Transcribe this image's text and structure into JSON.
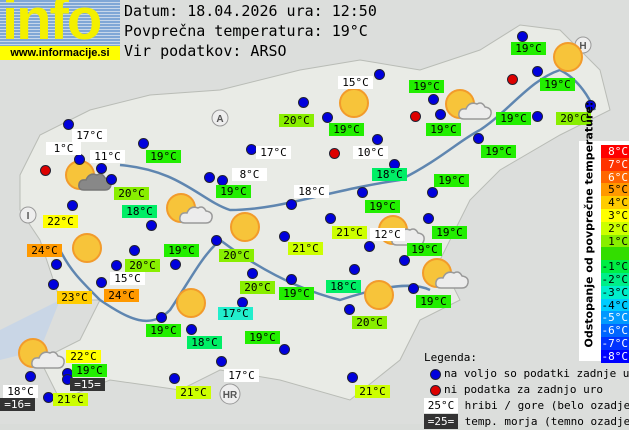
{
  "logo": {
    "text": "info",
    "url": "www.informacije.si"
  },
  "header": {
    "date_line": "Datum: 18.04.2026 ura: 12:50",
    "avg_line": "Povprečna temperatura: 19°C",
    "source_line": "Vir podatkov: ARSO"
  },
  "colors": {
    "station_ok": "#0000dd",
    "station_missing": "#dd0000",
    "mountain_bg": "#ffffff",
    "sea_bg": "#333333"
  },
  "scale": {
    "title": "Odstopanje od povprečne temperature:",
    "steps": [
      {
        "label": "8°C",
        "color": "#ff0000"
      },
      {
        "label": "7°C",
        "color": "#ff3300"
      },
      {
        "label": "6°C",
        "color": "#ff6600"
      },
      {
        "label": "5°C",
        "color": "#ff9900"
      },
      {
        "label": "4°C",
        "color": "#ffcc00"
      },
      {
        "label": "3°C",
        "color": "#ffff00"
      },
      {
        "label": "2°C",
        "color": "#ccff00"
      },
      {
        "label": "1°C",
        "color": "#88ee00"
      },
      {
        "label": "",
        "color": "#33dd00"
      },
      {
        "label": "-1°C",
        "color": "#00ee44"
      },
      {
        "label": "-2°C",
        "color": "#00ee88"
      },
      {
        "label": "-3°C",
        "color": "#00eecc"
      },
      {
        "label": "-4°C",
        "color": "#00ccff"
      },
      {
        "label": "-5°C",
        "color": "#0099ff"
      },
      {
        "label": "-6°C",
        "color": "#0066ff"
      },
      {
        "label": "-7°C",
        "color": "#0033ff"
      },
      {
        "label": "-8°C",
        "color": "#0000ff"
      }
    ]
  },
  "legend": {
    "title": "Legenda:",
    "ok": "na voljo so podatki zadnje ure",
    "missing": "ni podatka za zadnjo uro",
    "mountain_sample": "25°C",
    "mountain": "hribi / gore (belo ozadje)",
    "sea_sample": "=25=",
    "sea": "temp. morja (temno ozadje)"
  },
  "map_letters": [
    "A",
    "H",
    "I",
    "HR"
  ],
  "temps": [
    {
      "t": "17°C",
      "k": "m"
    },
    {
      "t": "1°C",
      "k": "m"
    },
    {
      "t": "11°C",
      "k": "m"
    },
    {
      "t": "19°C",
      "k": "0"
    },
    {
      "t": "17°C",
      "k": "m"
    },
    {
      "t": "20°C",
      "k": "1"
    },
    {
      "t": "8°C",
      "k": "m"
    },
    {
      "t": "19°C",
      "k": "0"
    },
    {
      "t": "18°C",
      "k": "m"
    },
    {
      "t": "18°C",
      "k": "-1"
    },
    {
      "t": "22°C",
      "k": "3"
    },
    {
      "t": "24°C",
      "k": "5"
    },
    {
      "t": "19°C",
      "k": "0"
    },
    {
      "t": "20°C",
      "k": "1"
    },
    {
      "t": "20°C",
      "k": "1"
    },
    {
      "t": "21°C",
      "k": "2"
    },
    {
      "t": "15°C",
      "k": "m"
    },
    {
      "t": "23°C",
      "k": "4"
    },
    {
      "t": "24°C",
      "k": "5"
    },
    {
      "t": "20°C",
      "k": "1"
    },
    {
      "t": "19°C",
      "k": "0"
    },
    {
      "t": "17°C",
      "k": "-2"
    },
    {
      "t": "19°C",
      "k": "0"
    },
    {
      "t": "18°C",
      "k": "-1"
    },
    {
      "t": "19°C",
      "k": "0"
    },
    {
      "t": "22°C",
      "k": "3"
    },
    {
      "t": "19°C",
      "k": "0"
    },
    {
      "t": "=15=",
      "k": "s"
    },
    {
      "t": "18°C",
      "k": "m"
    },
    {
      "t": "=16=",
      "k": "s"
    },
    {
      "t": "21°C",
      "k": "2"
    },
    {
      "t": "21°C",
      "k": "2"
    },
    {
      "t": "17°C",
      "k": "m"
    },
    {
      "t": "21°C",
      "k": "2"
    },
    {
      "t": "19°C",
      "k": "0"
    },
    {
      "t": "15°C",
      "k": "m"
    },
    {
      "t": "19°C",
      "k": "0"
    },
    {
      "t": "19°C",
      "k": "0"
    },
    {
      "t": "20°C",
      "k": "1"
    },
    {
      "t": "19°C",
      "k": "0"
    },
    {
      "t": "19°C",
      "k": "0"
    },
    {
      "t": "19°C",
      "k": "0"
    },
    {
      "t": "20°C",
      "k": "1"
    },
    {
      "t": "19°C",
      "k": "0"
    },
    {
      "t": "10°C",
      "k": "m"
    },
    {
      "t": "18°C",
      "k": "-1"
    },
    {
      "t": "19°C",
      "k": "0"
    },
    {
      "t": "19°C",
      "k": "0"
    },
    {
      "t": "21°C",
      "k": "2"
    },
    {
      "t": "12°C",
      "k": "m"
    },
    {
      "t": "19°C",
      "k": "0"
    },
    {
      "t": "19°C",
      "k": "0"
    },
    {
      "t": "18°C",
      "k": "-1"
    },
    {
      "t": "19°C",
      "k": "0"
    },
    {
      "t": "20°C",
      "k": "1"
    }
  ],
  "weather_icons": [
    "sun-icon",
    "sun-icon",
    "sun-cloud-icon",
    "sun-cloud-dark-icon",
    "sun-cloud-icon",
    "sun-icon",
    "sun-icon",
    "sun-cloud-icon",
    "sun-cloud-icon",
    "sun-icon",
    "sun-icon",
    "sun-cloud-icon"
  ]
}
